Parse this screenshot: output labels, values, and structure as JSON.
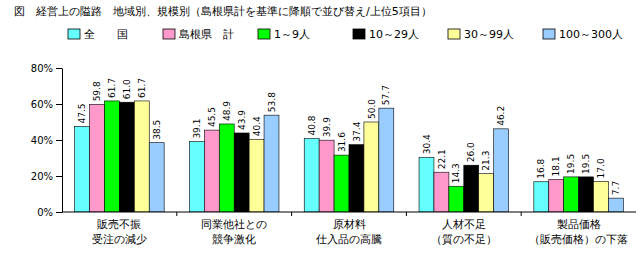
{
  "chart_data": {
    "type": "bar",
    "title": "図　経営上の隘路　地域別、規模別（島根県計を基準に降順で並び替え/上位5項目）",
    "categories": [
      "販売不振\n受注の減少",
      "同業他社との\n競争激化",
      "原材料\n仕入品の高騰",
      "人材不足\n（質の不足）",
      "製品価格\n（販売価格）の下落"
    ],
    "series": [
      {
        "name": "全　　国",
        "color": "#66ffff",
        "values": [
          47.5,
          39.1,
          40.8,
          30.4,
          16.8
        ],
        "value_labels": [
          "47.5",
          "39.1",
          "40.8",
          "30.4",
          "16.8"
        ]
      },
      {
        "name": "島根県　計",
        "color": "#ff99cc",
        "values": [
          59.8,
          45.5,
          39.9,
          22.1,
          18.1
        ],
        "value_labels": [
          "59.8",
          "45.5",
          "39.9",
          "22.1",
          "18.1"
        ]
      },
      {
        "name": "1～9人",
        "color": "#00ff00",
        "values": [
          61.7,
          48.9,
          31.6,
          14.3,
          19.5
        ],
        "value_labels": [
          "61.7",
          "48.9",
          "31.6",
          "14.3",
          "19.5"
        ]
      },
      {
        "name": "10～29人",
        "color": "#000000",
        "values": [
          61.0,
          43.9,
          37.4,
          26.0,
          19.5
        ],
        "value_labels": [
          "61.0",
          "43.9",
          "37.4",
          "26.0",
          "19.5"
        ]
      },
      {
        "name": "30～99人",
        "color": "#ffff99",
        "values": [
          61.7,
          40.4,
          50.0,
          21.3,
          17.0
        ],
        "value_labels": [
          "61.7",
          "40.4",
          "50.0",
          "21.3",
          "17.0"
        ]
      },
      {
        "name": "100～300人",
        "color": "#99ccff",
        "values": [
          38.5,
          53.8,
          57.7,
          46.2,
          7.7
        ],
        "value_labels": [
          "38.5",
          "53.8",
          "57.7",
          "46.2",
          "7.7"
        ]
      }
    ],
    "ylim": [
      0,
      80
    ],
    "yticks": [
      {
        "value": 0,
        "label": "0%"
      },
      {
        "value": 20,
        "label": "20%"
      },
      {
        "value": 40,
        "label": "40%"
      },
      {
        "value": 60,
        "label": "60%"
      },
      {
        "value": 80,
        "label": "80%"
      }
    ],
    "grid": false,
    "legend": "top",
    "data_labels": true
  }
}
